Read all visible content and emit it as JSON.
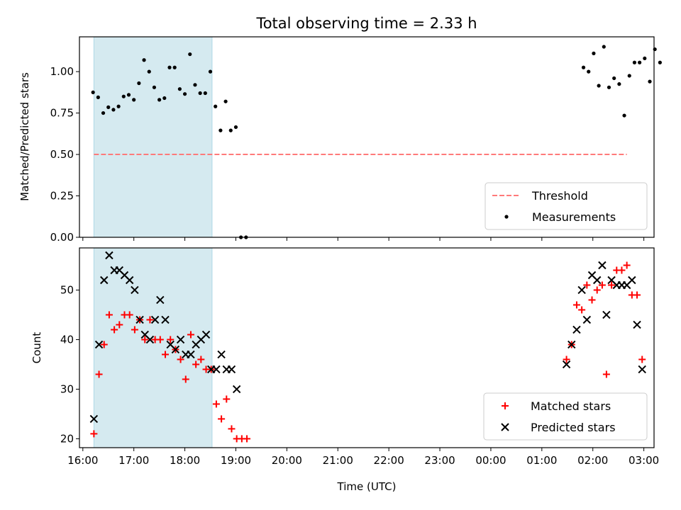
{
  "chart_data": [
    {
      "type": "scatter",
      "title": "Total observing time = 2.33 h",
      "xlabel": "",
      "ylabel": "Matched/Predicted stars",
      "ylim": [
        0,
        1.21
      ],
      "yticks": [
        0.0,
        0.25,
        0.5,
        0.75,
        1.0
      ],
      "ytick_labels": [
        "0.00",
        "0.25",
        "0.50",
        "0.75",
        "1.00"
      ],
      "shaded_span": [
        "16:13",
        "18:32"
      ],
      "shaded_color": "#d5eaf0",
      "legend_position": "lower right",
      "threshold": {
        "name": "Threshold",
        "value": 0.5,
        "x_range": [
          "16:13",
          "02:40"
        ],
        "color": "#ff7a7a",
        "style": "dashed"
      },
      "measurements": {
        "name": "Measurements",
        "color": "#000000",
        "points": [
          [
            "16:12",
            0.875
          ],
          [
            "16:18",
            0.845
          ],
          [
            "16:24",
            0.75
          ],
          [
            "16:30",
            0.785
          ],
          [
            "16:36",
            0.77
          ],
          [
            "16:42",
            0.79
          ],
          [
            "16:48",
            0.85
          ],
          [
            "16:54",
            0.86
          ],
          [
            "17:00",
            0.83
          ],
          [
            "17:06",
            0.93
          ],
          [
            "17:12",
            1.07
          ],
          [
            "17:18",
            1.0
          ],
          [
            "17:24",
            0.905
          ],
          [
            "17:30",
            0.83
          ],
          [
            "17:36",
            0.84
          ],
          [
            "17:42",
            1.025
          ],
          [
            "17:48",
            1.025
          ],
          [
            "17:54",
            0.895
          ],
          [
            "18:00",
            0.865
          ],
          [
            "18:06",
            1.105
          ],
          [
            "18:12",
            0.92
          ],
          [
            "18:18",
            0.87
          ],
          [
            "18:24",
            0.87
          ],
          [
            "18:30",
            1.0
          ],
          [
            "18:36",
            0.79
          ],
          [
            "18:42",
            0.645
          ],
          [
            "18:48",
            0.82
          ],
          [
            "18:54",
            0.645
          ],
          [
            "19:00",
            0.665
          ],
          [
            "19:06",
            0.0
          ],
          [
            "19:12",
            0.0
          ],
          [
            "01:49",
            1.025
          ],
          [
            "01:55",
            1.0
          ],
          [
            "02:01",
            1.11
          ],
          [
            "02:07",
            0.915
          ],
          [
            "02:13",
            1.15
          ],
          [
            "02:19",
            0.905
          ],
          [
            "02:25",
            0.96
          ],
          [
            "02:31",
            0.925
          ],
          [
            "02:37",
            0.735
          ],
          [
            "02:43",
            0.975
          ],
          [
            "02:49",
            1.055
          ],
          [
            "02:55",
            1.055
          ],
          [
            "03:01",
            1.08
          ],
          [
            "03:07",
            0.94
          ],
          [
            "03:13",
            1.135
          ],
          [
            "03:19",
            1.055
          ]
        ]
      }
    },
    {
      "type": "scatter",
      "title": "",
      "xlabel": "Time (UTC)",
      "ylabel": "Count",
      "ylim": [
        18.2,
        58.5
      ],
      "yticks": [
        20,
        30,
        40,
        50
      ],
      "ytick_labels": [
        "20",
        "30",
        "40",
        "50"
      ],
      "xlim": [
        "15:56",
        "03:12"
      ],
      "xticks": [
        "16:00",
        "17:00",
        "18:00",
        "19:00",
        "20:00",
        "21:00",
        "22:00",
        "23:00",
        "00:00",
        "01:00",
        "02:00",
        "03:00"
      ],
      "shaded_span": [
        "16:13",
        "18:32"
      ],
      "shaded_color": "#d5eaf0",
      "legend_position": "lower right",
      "series": [
        {
          "name": "Matched stars",
          "marker": "plus",
          "color": "#ff0000",
          "points": [
            [
              "16:13",
              21
            ],
            [
              "16:19",
              33
            ],
            [
              "16:25",
              39
            ],
            [
              "16:31",
              45
            ],
            [
              "16:37",
              42
            ],
            [
              "16:43",
              43
            ],
            [
              "16:49",
              45
            ],
            [
              "16:55",
              45
            ],
            [
              "17:01",
              42
            ],
            [
              "17:07",
              44
            ],
            [
              "17:13",
              40
            ],
            [
              "17:19",
              44
            ],
            [
              "17:25",
              40
            ],
            [
              "17:31",
              40
            ],
            [
              "17:37",
              37
            ],
            [
              "17:43",
              40
            ],
            [
              "17:49",
              38
            ],
            [
              "17:55",
              36
            ],
            [
              "18:01",
              32
            ],
            [
              "18:07",
              41
            ],
            [
              "18:13",
              35
            ],
            [
              "18:19",
              36
            ],
            [
              "18:25",
              34
            ],
            [
              "18:31",
              34
            ],
            [
              "18:37",
              27
            ],
            [
              "18:43",
              24
            ],
            [
              "18:49",
              28
            ],
            [
              "18:55",
              22
            ],
            [
              "19:01",
              20
            ],
            [
              "19:07",
              20
            ],
            [
              "19:13",
              20
            ],
            [
              "01:29",
              36
            ],
            [
              "01:35",
              39
            ],
            [
              "01:41",
              47
            ],
            [
              "01:47",
              46
            ],
            [
              "01:53",
              51
            ],
            [
              "01:59",
              48
            ],
            [
              "02:05",
              50
            ],
            [
              "02:11",
              51
            ],
            [
              "02:16",
              33
            ],
            [
              "02:22",
              51
            ],
            [
              "02:28",
              54
            ],
            [
              "02:34",
              54
            ],
            [
              "02:40",
              55
            ],
            [
              "02:46",
              49
            ],
            [
              "02:52",
              49
            ],
            [
              "02:58",
              36
            ]
          ]
        },
        {
          "name": "Predicted stars",
          "marker": "x",
          "color": "#000000",
          "points": [
            [
              "16:13",
              24
            ],
            [
              "16:19",
              39
            ],
            [
              "16:25",
              52
            ],
            [
              "16:31",
              57
            ],
            [
              "16:37",
              54
            ],
            [
              "16:43",
              54
            ],
            [
              "16:49",
              53
            ],
            [
              "16:55",
              52
            ],
            [
              "17:01",
              50
            ],
            [
              "17:07",
              44
            ],
            [
              "17:13",
              41
            ],
            [
              "17:19",
              40
            ],
            [
              "17:25",
              44
            ],
            [
              "17:31",
              48
            ],
            [
              "17:37",
              44
            ],
            [
              "17:43",
              39
            ],
            [
              "17:49",
              38
            ],
            [
              "17:55",
              40
            ],
            [
              "18:01",
              37
            ],
            [
              "18:07",
              37
            ],
            [
              "18:13",
              39
            ],
            [
              "18:19",
              40
            ],
            [
              "18:25",
              41
            ],
            [
              "18:31",
              34
            ],
            [
              "18:37",
              34
            ],
            [
              "18:43",
              37
            ],
            [
              "18:49",
              34
            ],
            [
              "18:55",
              34
            ],
            [
              "19:01",
              30
            ],
            [
              "01:29",
              35
            ],
            [
              "01:35",
              39
            ],
            [
              "01:41",
              42
            ],
            [
              "01:47",
              50
            ],
            [
              "01:53",
              44
            ],
            [
              "01:59",
              53
            ],
            [
              "02:05",
              52
            ],
            [
              "02:11",
              55
            ],
            [
              "02:16",
              45
            ],
            [
              "02:22",
              52
            ],
            [
              "02:28",
              51
            ],
            [
              "02:34",
              51
            ],
            [
              "02:40",
              51
            ],
            [
              "02:46",
              52
            ],
            [
              "02:52",
              43
            ],
            [
              "02:58",
              34
            ]
          ]
        }
      ]
    }
  ]
}
